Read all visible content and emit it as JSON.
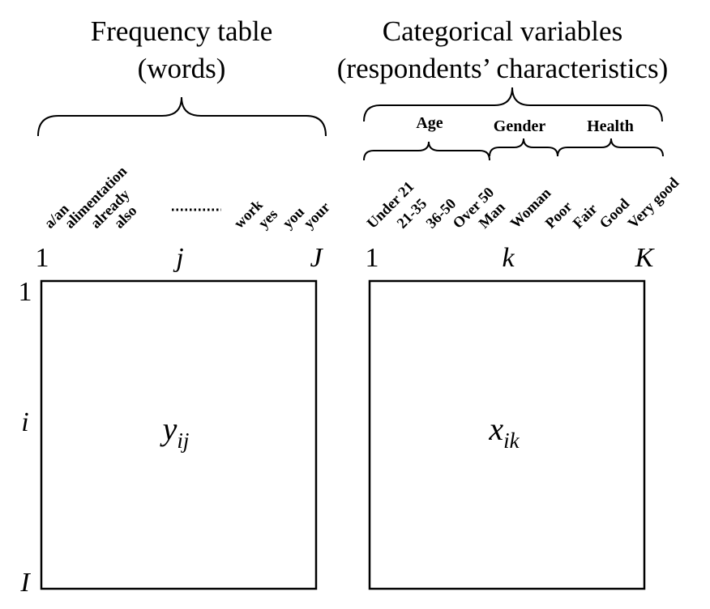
{
  "left_panel": {
    "title_line1": "Frequency table",
    "title_line2": "(words)",
    "columns": [
      "a/an",
      "alimentation",
      "already",
      "also",
      "work",
      "yes",
      "you",
      "your"
    ],
    "ellipsis": "........",
    "col_index_first": "1",
    "col_index_mid": "j",
    "col_index_last": "J",
    "row_index_first": "1",
    "row_index_mid": "i",
    "row_index_last": "I",
    "cell_var": "y",
    "cell_sub": "ij"
  },
  "right_panel": {
    "title_line1": "Categorical variables",
    "title_line2": "(respondents’ characteristics)",
    "groups": [
      {
        "label": "Age",
        "columns": [
          "Under 21",
          "21-35",
          "36-50",
          "Over 50"
        ]
      },
      {
        "label": "Gender",
        "columns": [
          "Man",
          "Woman"
        ]
      },
      {
        "label": "Health",
        "columns": [
          "Poor",
          "Fair",
          "Good",
          "Very good"
        ]
      }
    ],
    "col_index_first": "1",
    "col_index_mid": "k",
    "col_index_last": "K",
    "cell_var": "x",
    "cell_sub": "ik"
  }
}
